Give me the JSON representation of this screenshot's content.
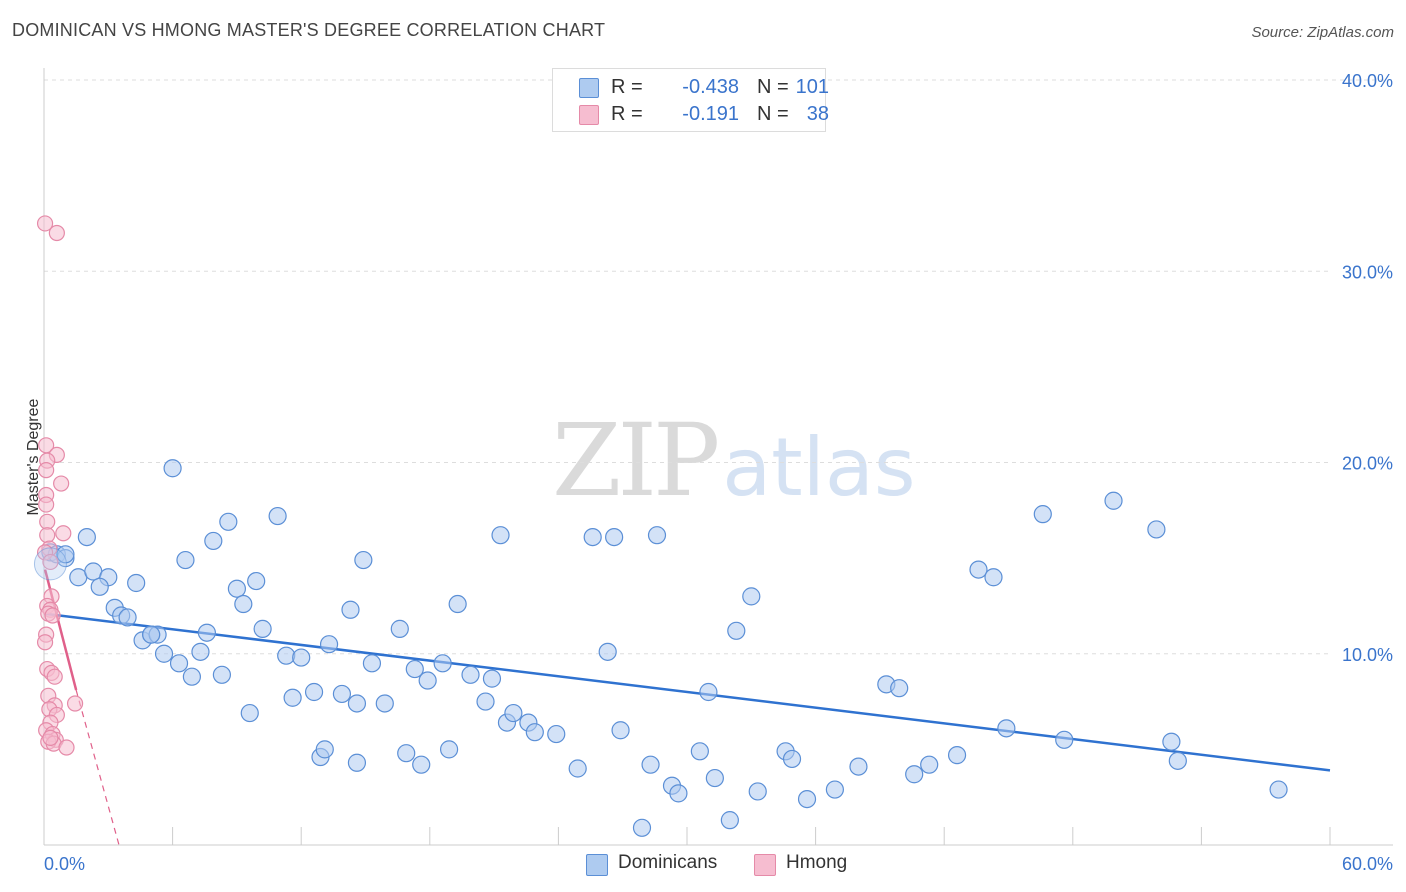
{
  "title": "DOMINICAN VS HMONG MASTER'S DEGREE CORRELATION CHART",
  "source": "Source: ZipAtlas.com",
  "watermark": {
    "zip": "ZIP",
    "atlas": "atlas"
  },
  "legend_top": [
    {
      "r_label": "R =",
      "r_value": "-0.438",
      "n_label": "N =",
      "n_value": "101"
    },
    {
      "r_label": "R =",
      "r_value": "-0.191",
      "n_label": "N =",
      "n_value": "38"
    }
  ],
  "legend_bottom": [
    "Dominicans",
    "Hmong"
  ],
  "colors": {
    "dominican_fill": "#aecbf0",
    "dominican_stroke": "#5b8fd6",
    "dominican_line": "#2f72d0",
    "hmong_fill": "#f6bdd0",
    "hmong_stroke": "#e58aa8",
    "hmong_line": "#e0608a",
    "tick_text": "#3a74cc",
    "grid": "#dddddd"
  },
  "chart_data": {
    "type": "scatter",
    "title": "DOMINICAN VS HMONG MASTER'S DEGREE CORRELATION CHART",
    "xlabel": "",
    "ylabel": "Master's Degree",
    "xlim": [
      0,
      60
    ],
    "ylim": [
      0,
      40
    ],
    "x_tick_labels": [
      "0.0%",
      "60.0%"
    ],
    "y_ticks": [
      {
        "value": 10,
        "label": "10.0%"
      },
      {
        "value": 20,
        "label": "20.0%"
      },
      {
        "value": 30,
        "label": "30.0%"
      },
      {
        "value": 40,
        "label": "40.0%"
      }
    ],
    "series": [
      {
        "name": "Dominicans",
        "r": -0.438,
        "n": 101,
        "trend": {
          "x": [
            0,
            60
          ],
          "y": [
            12.1,
            3.9
          ]
        },
        "points": [
          [
            0.3,
            15.3
          ],
          [
            0.6,
            15.2
          ],
          [
            1.0,
            15.0
          ],
          [
            1.0,
            15.2
          ],
          [
            2.0,
            16.1
          ],
          [
            1.6,
            14.0
          ],
          [
            2.3,
            14.3
          ],
          [
            3.0,
            14.0
          ],
          [
            2.6,
            13.5
          ],
          [
            4.3,
            13.7
          ],
          [
            3.3,
            12.4
          ],
          [
            3.6,
            12.0
          ],
          [
            3.9,
            11.9
          ],
          [
            4.6,
            10.7
          ],
          [
            5.0,
            11.0
          ],
          [
            5.3,
            11.0
          ],
          [
            5.6,
            10.0
          ],
          [
            6.3,
            9.5
          ],
          [
            6.9,
            8.8
          ],
          [
            7.6,
            11.1
          ],
          [
            7.3,
            10.1
          ],
          [
            8.3,
            8.9
          ],
          [
            6.0,
            19.7
          ],
          [
            6.6,
            14.9
          ],
          [
            7.9,
            15.9
          ],
          [
            8.6,
            16.9
          ],
          [
            9.0,
            13.4
          ],
          [
            9.3,
            12.6
          ],
          [
            9.9,
            13.8
          ],
          [
            10.2,
            11.3
          ],
          [
            10.9,
            17.2
          ],
          [
            11.3,
            9.9
          ],
          [
            12.0,
            9.8
          ],
          [
            11.6,
            7.7
          ],
          [
            12.6,
            8.0
          ],
          [
            9.6,
            6.9
          ],
          [
            13.3,
            10.5
          ],
          [
            13.9,
            7.9
          ],
          [
            14.3,
            12.3
          ],
          [
            14.9,
            14.9
          ],
          [
            14.6,
            7.4
          ],
          [
            15.3,
            9.5
          ],
          [
            15.9,
            7.4
          ],
          [
            16.6,
            11.3
          ],
          [
            17.3,
            9.2
          ],
          [
            17.9,
            8.6
          ],
          [
            18.6,
            9.5
          ],
          [
            19.3,
            12.6
          ],
          [
            19.9,
            8.9
          ],
          [
            20.6,
            7.5
          ],
          [
            20.9,
            8.7
          ],
          [
            21.3,
            16.2
          ],
          [
            21.6,
            6.4
          ],
          [
            21.9,
            6.9
          ],
          [
            22.6,
            6.4
          ],
          [
            22.9,
            5.9
          ],
          [
            23.9,
            5.8
          ],
          [
            24.9,
            4.0
          ],
          [
            25.6,
            16.1
          ],
          [
            26.3,
            10.1
          ],
          [
            26.6,
            16.1
          ],
          [
            26.9,
            6.0
          ],
          [
            12.9,
            4.6
          ],
          [
            13.1,
            5.0
          ],
          [
            14.6,
            4.3
          ],
          [
            16.9,
            4.8
          ],
          [
            17.6,
            4.2
          ],
          [
            18.9,
            5.0
          ],
          [
            28.6,
            16.2
          ],
          [
            27.9,
            0.9
          ],
          [
            28.3,
            4.2
          ],
          [
            29.3,
            3.1
          ],
          [
            29.6,
            2.7
          ],
          [
            30.6,
            4.9
          ],
          [
            31.0,
            8.0
          ],
          [
            31.3,
            3.5
          ],
          [
            32.0,
            1.3
          ],
          [
            32.3,
            11.2
          ],
          [
            33.0,
            13.0
          ],
          [
            33.3,
            2.8
          ],
          [
            34.6,
            4.9
          ],
          [
            34.9,
            4.5
          ],
          [
            35.6,
            2.4
          ],
          [
            36.9,
            2.9
          ],
          [
            38.0,
            4.1
          ],
          [
            39.3,
            8.4
          ],
          [
            39.9,
            8.2
          ],
          [
            40.6,
            3.7
          ],
          [
            41.3,
            4.2
          ],
          [
            42.6,
            4.7
          ],
          [
            43.6,
            14.4
          ],
          [
            44.3,
            14.0
          ],
          [
            44.9,
            6.1
          ],
          [
            46.6,
            17.3
          ],
          [
            47.6,
            5.5
          ],
          [
            49.9,
            18.0
          ],
          [
            51.9,
            16.5
          ],
          [
            52.6,
            5.4
          ],
          [
            52.9,
            4.4
          ],
          [
            57.6,
            2.9
          ],
          [
            5.0,
            11.0
          ]
        ]
      },
      {
        "name": "Hmong",
        "r": -0.191,
        "n": 38,
        "trend": {
          "x": [
            0.05,
            1.5
          ],
          "y": [
            14.4,
            8.1
          ],
          "dash_to": {
            "x": 3.5,
            "y": 0.0
          }
        },
        "points": [
          [
            0.05,
            32.5
          ],
          [
            0.6,
            32.0
          ],
          [
            0.1,
            20.9
          ],
          [
            0.6,
            20.4
          ],
          [
            0.15,
            20.1
          ],
          [
            0.1,
            19.6
          ],
          [
            0.8,
            18.9
          ],
          [
            0.1,
            18.3
          ],
          [
            0.1,
            17.8
          ],
          [
            0.15,
            16.9
          ],
          [
            0.9,
            16.3
          ],
          [
            0.15,
            16.2
          ],
          [
            0.25,
            15.5
          ],
          [
            0.05,
            15.3
          ],
          [
            0.3,
            14.8
          ],
          [
            0.35,
            13.0
          ],
          [
            0.15,
            12.5
          ],
          [
            0.3,
            12.3
          ],
          [
            0.2,
            12.1
          ],
          [
            0.4,
            12.0
          ],
          [
            0.1,
            11.0
          ],
          [
            0.05,
            10.6
          ],
          [
            0.15,
            9.2
          ],
          [
            0.35,
            9.0
          ],
          [
            0.5,
            8.8
          ],
          [
            0.2,
            7.8
          ],
          [
            1.45,
            7.4
          ],
          [
            0.5,
            7.3
          ],
          [
            0.25,
            7.1
          ],
          [
            0.6,
            6.8
          ],
          [
            0.3,
            6.4
          ],
          [
            0.1,
            6.0
          ],
          [
            0.4,
            5.8
          ],
          [
            0.55,
            5.5
          ],
          [
            0.2,
            5.4
          ],
          [
            0.45,
            5.3
          ],
          [
            1.05,
            5.1
          ],
          [
            0.3,
            5.6
          ]
        ]
      }
    ]
  }
}
